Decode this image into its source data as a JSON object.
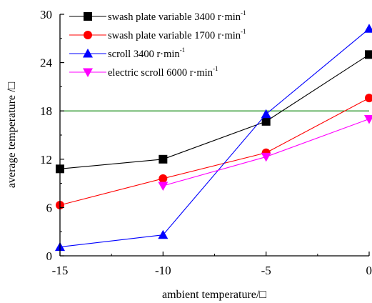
{
  "chart_data": {
    "type": "line",
    "x": [
      -15,
      -10,
      -5,
      0
    ],
    "xlim": [
      -15,
      0
    ],
    "ylim": [
      0,
      30
    ],
    "xticks": [
      -15,
      -10,
      -5,
      0
    ],
    "yticks": [
      0,
      6,
      12,
      18,
      24,
      30
    ],
    "xtick_labels": [
      "-15",
      "-10",
      "-5",
      "0"
    ],
    "ytick_labels": [
      "0",
      "6",
      "12",
      "18",
      "24",
      "30"
    ],
    "xlabel": "ambient temperature/□",
    "ylabel": "average temperature /□",
    "legend_position": "top-left",
    "reference_line": {
      "y": 18,
      "color": "#008000"
    },
    "series": [
      {
        "name": "swash plate variable 3400 r·min",
        "unit_sup": "-1",
        "color": "#000000",
        "marker": "square",
        "values": [
          10.8,
          12.0,
          16.7,
          25.0
        ]
      },
      {
        "name": "swash plate variable 1700 r·min",
        "unit_sup": "-1",
        "color": "#ff0000",
        "marker": "circle",
        "values": [
          6.3,
          9.6,
          12.8,
          19.6
        ]
      },
      {
        "name": "scroll 3400 r·min",
        "unit_sup": "-1",
        "color": "#0000ff",
        "marker": "triangle-up",
        "values": [
          1.1,
          2.6,
          17.6,
          28.2
        ]
      },
      {
        "name": "electric scroll 6000 r·min",
        "unit_sup": "-1",
        "color": "#ff00ff",
        "marker": "triangle-down",
        "values": [
          null,
          8.7,
          12.3,
          17.0
        ]
      }
    ]
  }
}
